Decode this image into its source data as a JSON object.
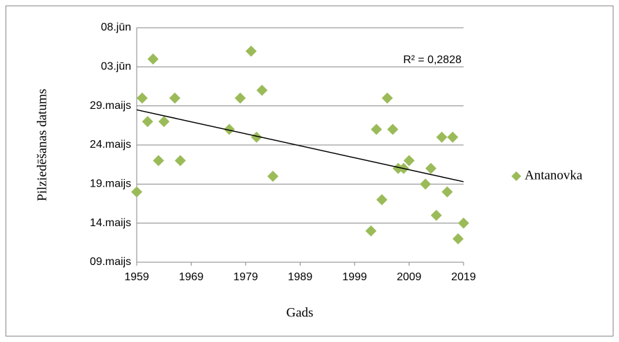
{
  "chart_data": {
    "type": "scatter",
    "xlabel": "Gads",
    "ylabel": "Pilziedēšanas datums",
    "annotation": "R² = 0,2828",
    "grid": true,
    "legend": "right",
    "xlim": [
      1959,
      2019
    ],
    "xticks": [
      1959,
      1969,
      1979,
      1989,
      1999,
      2009,
      2019
    ],
    "ylim": [
      129,
      159
    ],
    "yticks": [
      {
        "value": 129,
        "label": "09.maijs"
      },
      {
        "value": 134,
        "label": "14.maijs"
      },
      {
        "value": 139,
        "label": "19.maijs"
      },
      {
        "value": 144,
        "label": "24.maijs"
      },
      {
        "value": 149,
        "label": "29.maijs"
      },
      {
        "value": 154,
        "label": "03.jūn"
      },
      {
        "value": 159,
        "label": "08.jūn"
      }
    ],
    "series": [
      {
        "name": "Antanovka",
        "color": "#9bbb59",
        "x": [
          1959,
          1960,
          1961,
          1962,
          1963,
          1964,
          1966,
          1967,
          1976,
          1978,
          1980,
          1981,
          1982,
          1984,
          2002,
          2003,
          2004,
          2005,
          2006,
          2007,
          2008,
          2009,
          2012,
          2013,
          2014,
          2015,
          2016,
          2017,
          2018,
          2019
        ],
        "values": [
          138,
          150,
          147,
          155,
          142,
          147,
          150,
          142,
          146,
          150,
          156,
          145,
          151,
          140,
          133,
          146,
          137,
          150,
          146,
          141,
          141,
          142,
          139,
          141,
          135,
          145,
          138,
          145,
          132,
          134
        ]
      }
    ],
    "trendline": {
      "color": "#000000",
      "x": [
        1959,
        2019
      ],
      "values": [
        148.5,
        139.3
      ]
    }
  }
}
